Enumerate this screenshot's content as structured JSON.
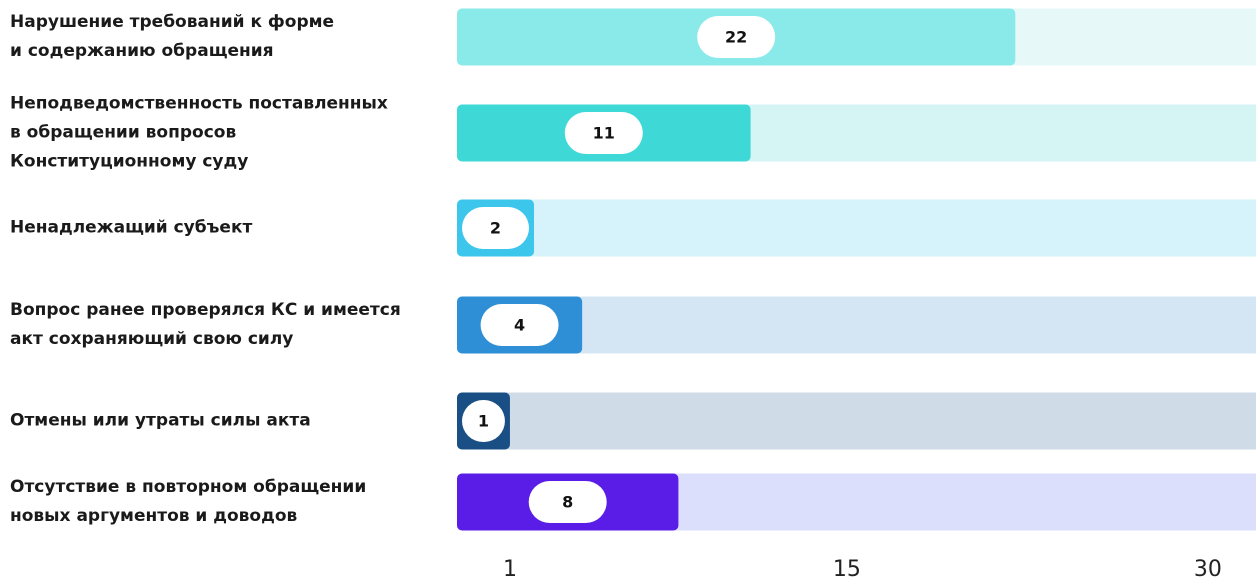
{
  "chart_data": {
    "type": "barh",
    "categories": [
      "Нарушение требований к форме\nи содержанию обращения",
      "Неподведомственность поставленных\nв обращении вопросов\nКонституционному суду",
      "Ненадлежащий субъект",
      "Вопрос ранее проверялся КС и имеется\nакт сохраняющий свою силу",
      "Отмены или утраты силы акта",
      "Отсутствие в повторном обращении\nновых аргументов и доводов"
    ],
    "values": [
      22,
      11,
      2,
      4,
      1,
      8
    ],
    "colors": [
      "#8aeaea",
      "#3ed9d6",
      "#3cc6ec",
      "#2e8fd6",
      "#1a4f86",
      "#5a1de8"
    ],
    "track_colors": [
      "#e6f8f8",
      "#d5f5f4",
      "#d6f2fa",
      "#d4e6f4",
      "#cfdbe6",
      "#dcdffc"
    ],
    "xlim": [
      -1.2,
      32
    ],
    "xticks": [
      1,
      15,
      30
    ]
  }
}
